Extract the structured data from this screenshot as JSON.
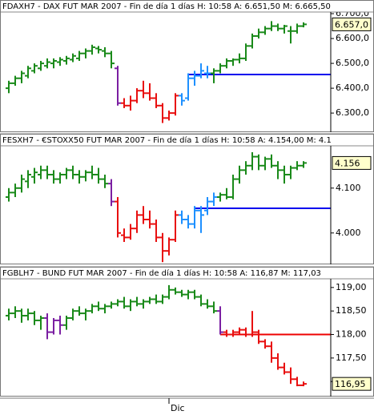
{
  "chart_data": {
    "type": "ohlc",
    "xlim": [
      -1.375,
      50.25
    ],
    "xticks": [
      {
        "value": 25,
        "label": "Dic"
      }
    ],
    "panels": [
      {
        "title": "FDAXH7 - DAX FUT MAR 2007 - Fin de día 1 días  H: 10:58  A: 6.651,50  M: 6.665,50",
        "ylim": [
          6223,
          6755
        ],
        "yticks": [
          {
            "value": 6300,
            "label": "6.300,0"
          },
          {
            "value": 6400,
            "label": "6.400,0"
          },
          {
            "value": 6500,
            "label": "6.500,0"
          },
          {
            "value": 6600,
            "label": "6.600,0"
          },
          {
            "value": 6700,
            "label": "6.700,0"
          }
        ],
        "last_label": "6.657,0",
        "hline": {
          "value": 6455,
          "color": "#0000ee",
          "from": 28
        },
        "ohlc": [
          [
            6400,
            6430,
            6380,
            6420
          ],
          [
            6420,
            6450,
            6410,
            6440
          ],
          [
            6440,
            6470,
            6420,
            6460
          ],
          [
            6450,
            6490,
            6440,
            6480
          ],
          [
            6470,
            6500,
            6460,
            6490
          ],
          [
            6480,
            6510,
            6470,
            6500
          ],
          [
            6490,
            6520,
            6480,
            6505
          ],
          [
            6500,
            6520,
            6480,
            6510
          ],
          [
            6505,
            6525,
            6490,
            6515
          ],
          [
            6510,
            6530,
            6495,
            6520
          ],
          [
            6515,
            6540,
            6505,
            6530
          ],
          [
            6520,
            6550,
            6510,
            6540
          ],
          [
            6540,
            6560,
            6520,
            6550
          ],
          [
            6550,
            6575,
            6535,
            6565
          ],
          [
            6560,
            6570,
            6540,
            6555
          ],
          [
            6550,
            6565,
            6525,
            6540
          ],
          [
            6540,
            6550,
            6480,
            6500
          ],
          [
            6480,
            6490,
            6330,
            6340
          ],
          [
            6340,
            6360,
            6320,
            6330
          ],
          [
            6330,
            6370,
            6310,
            6350
          ],
          [
            6350,
            6400,
            6340,
            6390
          ],
          [
            6390,
            6430,
            6360,
            6380
          ],
          [
            6380,
            6420,
            6350,
            6360
          ],
          [
            6360,
            6380,
            6320,
            6330
          ],
          [
            6330,
            6340,
            6260,
            6280
          ],
          [
            6280,
            6310,
            6270,
            6300
          ],
          [
            6300,
            6380,
            6290,
            6370
          ],
          [
            6370,
            6380,
            6330,
            6350
          ],
          [
            6360,
            6460,
            6350,
            6440
          ],
          [
            6440,
            6470,
            6410,
            6450
          ],
          [
            6450,
            6500,
            6440,
            6470
          ],
          [
            6460,
            6490,
            6440,
            6460
          ],
          [
            6460,
            6480,
            6420,
            6470
          ],
          [
            6470,
            6500,
            6460,
            6490
          ],
          [
            6490,
            6520,
            6480,
            6510
          ],
          [
            6510,
            6520,
            6490,
            6515
          ],
          [
            6515,
            6540,
            6500,
            6520
          ],
          [
            6520,
            6580,
            6510,
            6570
          ],
          [
            6570,
            6620,
            6560,
            6610
          ],
          [
            6610,
            6640,
            6600,
            6625
          ],
          [
            6625,
            6650,
            6615,
            6640
          ],
          [
            6640,
            6670,
            6630,
            6650
          ],
          [
            6650,
            6660,
            6630,
            6640
          ],
          [
            6640,
            6655,
            6620,
            6650
          ],
          [
            6630,
            6650,
            6580,
            6630
          ],
          [
            6630,
            6660,
            6620,
            6650
          ],
          [
            6650,
            6665,
            6645,
            6657
          ]
        ],
        "colors": [
          "#1a8a1a",
          "#1a8a1a",
          "#1a8a1a",
          "#1a8a1a",
          "#1a8a1a",
          "#1a8a1a",
          "#1a8a1a",
          "#1a8a1a",
          "#1a8a1a",
          "#1a8a1a",
          "#1a8a1a",
          "#1a8a1a",
          "#1a8a1a",
          "#1a8a1a",
          "#1a8a1a",
          "#1a8a1a",
          "#1a8a1a",
          "#7b1fa2",
          "#e81010",
          "#e81010",
          "#e81010",
          "#e81010",
          "#e81010",
          "#e81010",
          "#e81010",
          "#e81010",
          "#e81010",
          "#1e90ff",
          "#1e90ff",
          "#1e90ff",
          "#1e90ff",
          "#1e90ff",
          "#1a8a1a",
          "#1a8a1a",
          "#1a8a1a",
          "#1a8a1a",
          "#1a8a1a",
          "#1a8a1a",
          "#1a8a1a",
          "#1a8a1a",
          "#1a8a1a",
          "#1a8a1a",
          "#1a8a1a",
          "#1a8a1a",
          "#1a8a1a",
          "#1a8a1a",
          "#1a8a1a"
        ]
      },
      {
        "title": "FESXH7 - €STOXX50 FUT MAR 2007 - Fin de día 1 días  H: 10:58  A: 4.154,00  M: 4.1",
        "ylim": [
          3.93,
          4.221
        ],
        "yticks": [
          {
            "value": 4,
            "label": "4.000"
          },
          {
            "value": 4.1,
            "label": "4.100"
          }
        ],
        "last_label": "4.156",
        "hline": {
          "value": 4.055,
          "color": "#0000ee",
          "from": 29
        },
        "ohlc": [
          [
            4.08,
            4.1,
            4.07,
            4.09
          ],
          [
            4.09,
            4.11,
            4.08,
            4.1
          ],
          [
            4.1,
            4.13,
            4.09,
            4.12
          ],
          [
            4.115,
            4.14,
            4.1,
            4.13
          ],
          [
            4.125,
            4.145,
            4.11,
            4.135
          ],
          [
            4.13,
            4.15,
            4.12,
            4.14
          ],
          [
            4.14,
            4.15,
            4.12,
            4.13
          ],
          [
            4.13,
            4.14,
            4.11,
            4.12
          ],
          [
            4.12,
            4.135,
            4.11,
            4.13
          ],
          [
            4.13,
            4.145,
            4.12,
            4.14
          ],
          [
            4.14,
            4.15,
            4.12,
            4.13
          ],
          [
            4.13,
            4.14,
            4.11,
            4.125
          ],
          [
            4.125,
            4.14,
            4.115,
            4.135
          ],
          [
            4.135,
            4.15,
            4.12,
            4.13
          ],
          [
            4.13,
            4.145,
            4.11,
            4.12
          ],
          [
            4.12,
            4.13,
            4.1,
            4.11
          ],
          [
            4.11,
            4.12,
            4.06,
            4.07
          ],
          [
            4.07,
            4.08,
            3.99,
            4
          ],
          [
            3.995,
            4.01,
            3.98,
            3.99
          ],
          [
            3.99,
            4.02,
            3.985,
            4.01
          ],
          [
            4.01,
            4.05,
            4,
            4.04
          ],
          [
            4.04,
            4.06,
            4.02,
            4.03
          ],
          [
            4.03,
            4.05,
            4.01,
            4.02
          ],
          [
            4.02,
            4.03,
            3.98,
            3.99
          ],
          [
            3.99,
            4,
            3.935,
            3.96
          ],
          [
            3.96,
            3.99,
            3.95,
            3.985
          ],
          [
            3.985,
            4.05,
            3.98,
            4.04
          ],
          [
            4.04,
            4.05,
            4.02,
            4.03
          ],
          [
            4.03,
            4.04,
            4.01,
            4.02
          ],
          [
            4.02,
            4.06,
            4.01,
            4.05
          ],
          [
            4.05,
            4.06,
            4,
            4.04
          ],
          [
            4.05,
            4.08,
            4.04,
            4.07
          ],
          [
            4.07,
            4.09,
            4.06,
            4.08
          ],
          [
            4.08,
            4.09,
            4.07,
            4.085
          ],
          [
            4.085,
            4.1,
            4.075,
            4.08
          ],
          [
            4.08,
            4.13,
            4.075,
            4.12
          ],
          [
            4.12,
            4.15,
            4.11,
            4.14
          ],
          [
            4.14,
            4.16,
            4.13,
            4.15
          ],
          [
            4.15,
            4.18,
            4.14,
            4.17
          ],
          [
            4.17,
            4.175,
            4.14,
            4.15
          ],
          [
            4.15,
            4.17,
            4.14,
            4.165
          ],
          [
            4.165,
            4.175,
            4.145,
            4.15
          ],
          [
            4.15,
            4.16,
            4.12,
            4.14
          ],
          [
            4.14,
            4.15,
            4.11,
            4.13
          ],
          [
            4.13,
            4.15,
            4.12,
            4.145
          ],
          [
            4.145,
            4.16,
            4.14,
            4.15
          ],
          [
            4.15,
            4.16,
            4.145,
            4.156
          ]
        ],
        "colors": [
          "#1a8a1a",
          "#1a8a1a",
          "#1a8a1a",
          "#1a8a1a",
          "#1a8a1a",
          "#1a8a1a",
          "#1a8a1a",
          "#1a8a1a",
          "#1a8a1a",
          "#1a8a1a",
          "#1a8a1a",
          "#1a8a1a",
          "#1a8a1a",
          "#1a8a1a",
          "#1a8a1a",
          "#1a8a1a",
          "#7b1fa2",
          "#e81010",
          "#e81010",
          "#e81010",
          "#e81010",
          "#e81010",
          "#e81010",
          "#e81010",
          "#e81010",
          "#e81010",
          "#e81010",
          "#1e90ff",
          "#1e90ff",
          "#1e90ff",
          "#1e90ff",
          "#1e90ff",
          "#1e90ff",
          "#1a8a1a",
          "#1a8a1a",
          "#1a8a1a",
          "#1a8a1a",
          "#1a8a1a",
          "#1a8a1a",
          "#1a8a1a",
          "#1a8a1a",
          "#1a8a1a",
          "#1a8a1a",
          "#1a8a1a",
          "#1a8a1a",
          "#1a8a1a",
          "#1a8a1a"
        ]
      },
      {
        "title": "FGBLH7 - BUND FUT MAR 2007 - Fin de día 1 días  H: 10:58  A: 116,87  M: 117,03",
        "ylim": [
          116.68,
          119.44
        ],
        "yticks": [
          {
            "value": 117,
            "label": "117,00"
          },
          {
            "value": 117.5,
            "label": "117,50"
          },
          {
            "value": 118,
            "label": "118,00"
          },
          {
            "value": 118.5,
            "label": "118,50"
          },
          {
            "value": 119,
            "label": "119,00"
          }
        ],
        "last_label": "116,95",
        "hline": {
          "value": 118,
          "color": "#ee0000",
          "from": 33
        },
        "ohlc": [
          [
            118.4,
            118.55,
            118.3,
            118.45
          ],
          [
            118.45,
            118.6,
            118.35,
            118.5
          ],
          [
            118.5,
            118.55,
            118.25,
            118.4
          ],
          [
            118.4,
            118.55,
            118.3,
            118.45
          ],
          [
            118.45,
            118.5,
            118.2,
            118.3
          ],
          [
            118.3,
            118.4,
            118.1,
            118.35
          ],
          [
            118.35,
            118.45,
            117.9,
            118.05
          ],
          [
            118.05,
            118.35,
            118,
            118.3
          ],
          [
            118.3,
            118.4,
            118,
            118.2
          ],
          [
            118.2,
            118.4,
            118.1,
            118.35
          ],
          [
            118.35,
            118.55,
            118.3,
            118.5
          ],
          [
            118.5,
            118.6,
            118.4,
            118.45
          ],
          [
            118.45,
            118.55,
            118.3,
            118.5
          ],
          [
            118.5,
            118.65,
            118.45,
            118.6
          ],
          [
            118.6,
            118.7,
            118.5,
            118.55
          ],
          [
            118.55,
            118.65,
            118.45,
            118.6
          ],
          [
            118.6,
            118.7,
            118.55,
            118.65
          ],
          [
            118.65,
            118.75,
            118.6,
            118.7
          ],
          [
            118.7,
            118.8,
            118.55,
            118.6
          ],
          [
            118.6,
            118.75,
            118.5,
            118.7
          ],
          [
            118.7,
            118.8,
            118.6,
            118.65
          ],
          [
            118.65,
            118.75,
            118.55,
            118.7
          ],
          [
            118.7,
            118.8,
            118.65,
            118.75
          ],
          [
            118.75,
            118.85,
            118.65,
            118.7
          ],
          [
            118.7,
            118.85,
            118.65,
            118.8
          ],
          [
            118.8,
            119.05,
            118.75,
            118.95
          ],
          [
            118.95,
            119,
            118.85,
            118.9
          ],
          [
            118.9,
            118.95,
            118.8,
            118.85
          ],
          [
            118.85,
            118.95,
            118.75,
            118.9
          ],
          [
            118.9,
            118.95,
            118.75,
            118.8
          ],
          [
            118.8,
            118.85,
            118.6,
            118.65
          ],
          [
            118.65,
            118.75,
            118.55,
            118.6
          ],
          [
            118.6,
            118.7,
            118.45,
            118.5
          ],
          [
            118.5,
            118.6,
            118,
            118.05
          ],
          [
            118.05,
            118.1,
            117.95,
            118
          ],
          [
            118,
            118.1,
            117.95,
            118.05
          ],
          [
            118.05,
            118.15,
            118,
            118.1
          ],
          [
            118.1,
            118.15,
            117.95,
            118
          ],
          [
            118,
            118.5,
            117.95,
            118.05
          ],
          [
            118.05,
            118.1,
            117.8,
            117.85
          ],
          [
            117.85,
            117.9,
            117.7,
            117.75
          ],
          [
            117.75,
            117.85,
            117.4,
            117.5
          ],
          [
            117.5,
            117.6,
            117.25,
            117.3
          ],
          [
            117.3,
            117.4,
            117.15,
            117.2
          ],
          [
            117.2,
            117.3,
            116.95,
            117.05
          ],
          [
            117.05,
            117.1,
            116.9,
            116.92
          ],
          [
            116.92,
            117,
            116.9,
            116.95
          ]
        ],
        "colors": [
          "#1a8a1a",
          "#1a8a1a",
          "#1a8a1a",
          "#1a8a1a",
          "#1a8a1a",
          "#1a8a1a",
          "#7b1fa2",
          "#7b1fa2",
          "#7b1fa2",
          "#1a8a1a",
          "#1a8a1a",
          "#1a8a1a",
          "#1a8a1a",
          "#1a8a1a",
          "#1a8a1a",
          "#1a8a1a",
          "#1a8a1a",
          "#1a8a1a",
          "#1a8a1a",
          "#1a8a1a",
          "#1a8a1a",
          "#1a8a1a",
          "#1a8a1a",
          "#1a8a1a",
          "#1a8a1a",
          "#1a8a1a",
          "#1a8a1a",
          "#1a8a1a",
          "#1a8a1a",
          "#1a8a1a",
          "#1a8a1a",
          "#1a8a1a",
          "#1a8a1a",
          "#7b1fa2",
          "#e81010",
          "#e81010",
          "#e81010",
          "#e81010",
          "#e81010",
          "#e81010",
          "#e81010",
          "#e81010",
          "#e81010",
          "#e81010",
          "#e81010",
          "#e81010",
          "#e81010"
        ]
      }
    ]
  }
}
